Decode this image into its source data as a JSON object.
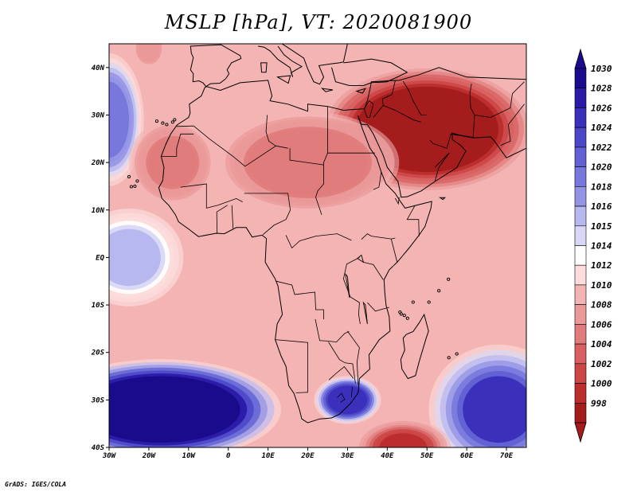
{
  "title": "MSLP [hPa], VT: 2020081900",
  "credit": "GrADS: IGES/COLA",
  "map": {
    "lon_range": [
      -30,
      75
    ],
    "lat_range": [
      -40,
      45
    ],
    "lon_ticks": [
      {
        "value": -30,
        "label": "30W"
      },
      {
        "value": -20,
        "label": "20W"
      },
      {
        "value": -10,
        "label": "10W"
      },
      {
        "value": 0,
        "label": "0"
      },
      {
        "value": 10,
        "label": "10E"
      },
      {
        "value": 20,
        "label": "20E"
      },
      {
        "value": 30,
        "label": "30E"
      },
      {
        "value": 40,
        "label": "40E"
      },
      {
        "value": 50,
        "label": "50E"
      },
      {
        "value": 60,
        "label": "60E"
      },
      {
        "value": 70,
        "label": "70E"
      }
    ],
    "lat_ticks": [
      {
        "value": 40,
        "label": "40N"
      },
      {
        "value": 30,
        "label": "30N"
      },
      {
        "value": 20,
        "label": "20N"
      },
      {
        "value": 10,
        "label": "10N"
      },
      {
        "value": 0,
        "label": "EQ"
      },
      {
        "value": -10,
        "label": "10S"
      },
      {
        "value": -20,
        "label": "20S"
      },
      {
        "value": -30,
        "label": "30S"
      },
      {
        "value": -40,
        "label": "40S"
      }
    ]
  },
  "colorbar": {
    "levels": [
      {
        "label": "1030",
        "color": "#1a0a8c"
      },
      {
        "label": "1028",
        "color": "#2a1aa8"
      },
      {
        "label": "1026",
        "color": "#3a30bc"
      },
      {
        "label": "1024",
        "color": "#4c46c8"
      },
      {
        "label": "1022",
        "color": "#6160d4"
      },
      {
        "label": "1020",
        "color": "#7878dc"
      },
      {
        "label": "1018",
        "color": "#9494e6"
      },
      {
        "label": "1016",
        "color": "#b8b8f0"
      },
      {
        "label": "1015",
        "color": "#d8d8f6"
      },
      {
        "label": "1014",
        "color": "#ffffff"
      },
      {
        "label": "1012",
        "color": "#fcdcdc"
      },
      {
        "label": "1010",
        "color": "#f4b4b4"
      },
      {
        "label": "1008",
        "color": "#ea9898"
      },
      {
        "label": "1006",
        "color": "#e07c7c"
      },
      {
        "label": "1004",
        "color": "#d86060"
      },
      {
        "label": "1002",
        "color": "#cc4646"
      },
      {
        "label": "1000",
        "color": "#bc2e2e"
      },
      {
        "label": "998",
        "color": "#a41c1c"
      }
    ],
    "top_arrow_color": "#1a0a8c",
    "bottom_arrow_color": "#a41c1c"
  },
  "pressure_centers": [
    {
      "lon": -17,
      "lat": -32,
      "rx": 20,
      "ry": 7,
      "value": 1031,
      "sigma": 12
    },
    {
      "lon": 30,
      "lat": -30,
      "rx": 5,
      "ry": 3,
      "value": 1027,
      "sigma": 4
    },
    {
      "lon": 68,
      "lat": -32,
      "rx": 9,
      "ry": 7,
      "value": 1026,
      "sigma": 10
    },
    {
      "lon": -30,
      "lat": 29,
      "rx": 5,
      "ry": 8,
      "value": 1021,
      "sigma": 7
    },
    {
      "lon": -25,
      "lat": 0,
      "rx": 8,
      "ry": 6,
      "value": 1016,
      "sigma": 8
    },
    {
      "lon": 50,
      "lat": 27,
      "rx": 18,
      "ry": 9,
      "value": 999,
      "sigma": 9
    },
    {
      "lon": 44,
      "lat": -40,
      "rx": 6,
      "ry": 3,
      "value": 1001,
      "sigma": 6
    },
    {
      "lon": -14,
      "lat": 20,
      "rx": 6,
      "ry": 5,
      "value": 1007,
      "sigma": 5
    },
    {
      "lon": 20,
      "lat": 20,
      "rx": 15,
      "ry": 7,
      "value": 1007,
      "sigma": 8
    },
    {
      "lon": -20,
      "lat": 44,
      "rx": 2,
      "ry": 2,
      "value": 1009,
      "sigma": 3
    }
  ]
}
